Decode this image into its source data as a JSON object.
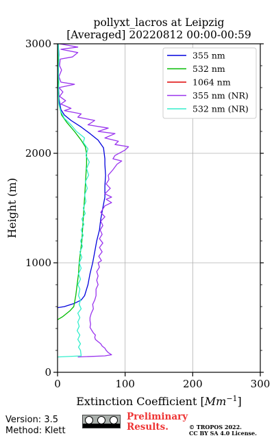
{
  "chart_data": {
    "type": "line",
    "title": [
      "pollyxt_lacros at Leipzig",
      "[Averaged] 20220812 00:00-00:59"
    ],
    "xlabel": "Extinction Coefficient [",
    "xlabel_unit": "Mm",
    "xlabel_exp": "−1",
    "xlabel_close": "]",
    "ylabel": "Height (m)",
    "xlim": [
      0,
      300
    ],
    "ylim": [
      0,
      3000
    ],
    "xticks": [
      0,
      100,
      200,
      300
    ],
    "yticks": [
      0,
      1000,
      2000,
      3000
    ],
    "grid": true,
    "legend_position": "top-right",
    "series": [
      {
        "name": "355 nm",
        "color": "#0000dd",
        "points": [
          [
            0,
            590
          ],
          [
            10,
            600
          ],
          [
            25,
            630
          ],
          [
            35,
            660
          ],
          [
            40,
            700
          ],
          [
            45,
            800
          ],
          [
            48,
            900
          ],
          [
            52,
            1000
          ],
          [
            55,
            1100
          ],
          [
            58,
            1200
          ],
          [
            62,
            1300
          ],
          [
            64,
            1400
          ],
          [
            67,
            1500
          ],
          [
            70,
            1600
          ],
          [
            70,
            1700
          ],
          [
            71,
            1800
          ],
          [
            70,
            1900
          ],
          [
            70,
            1950
          ],
          [
            68,
            2050
          ],
          [
            60,
            2120
          ],
          [
            48,
            2180
          ],
          [
            35,
            2240
          ],
          [
            20,
            2300
          ],
          [
            10,
            2350
          ],
          [
            5,
            2400
          ],
          [
            2,
            2500
          ],
          [
            1,
            2700
          ],
          [
            2,
            2900
          ],
          [
            1,
            3000
          ]
        ]
      },
      {
        "name": "532 nm",
        "color": "#00bb00",
        "points": [
          [
            0,
            480
          ],
          [
            8,
            510
          ],
          [
            18,
            560
          ],
          [
            24,
            600
          ],
          [
            27,
            700
          ],
          [
            29,
            800
          ],
          [
            31,
            900
          ],
          [
            32,
            1000
          ],
          [
            34,
            1100
          ],
          [
            36,
            1200
          ],
          [
            37,
            1300
          ],
          [
            38,
            1400
          ],
          [
            39,
            1500
          ],
          [
            40,
            1600
          ],
          [
            41,
            1700
          ],
          [
            42,
            1800
          ],
          [
            43,
            1900
          ],
          [
            43,
            2000
          ],
          [
            41,
            2060
          ],
          [
            35,
            2120
          ],
          [
            25,
            2200
          ],
          [
            14,
            2280
          ],
          [
            6,
            2350
          ],
          [
            2,
            2450
          ],
          [
            1,
            2600
          ],
          [
            1,
            3000
          ]
        ]
      },
      {
        "name": "1064 nm",
        "color": "#dd0000",
        "points": []
      },
      {
        "name": "355 nm (NR)",
        "color": "#9933ee",
        "points": [
          [
            30,
            140
          ],
          [
            50,
            145
          ],
          [
            70,
            150
          ],
          [
            80,
            160
          ],
          [
            75,
            180
          ],
          [
            72,
            200
          ],
          [
            70,
            220
          ],
          [
            66,
            240
          ],
          [
            64,
            260
          ],
          [
            60,
            280
          ],
          [
            56,
            300
          ],
          [
            55,
            320
          ],
          [
            56,
            340
          ],
          [
            53,
            360
          ],
          [
            50,
            390
          ],
          [
            48,
            410
          ],
          [
            49,
            440
          ],
          [
            48,
            470
          ],
          [
            48,
            500
          ],
          [
            50,
            540
          ],
          [
            53,
            580
          ],
          [
            52,
            620
          ],
          [
            55,
            660
          ],
          [
            57,
            700
          ],
          [
            57,
            760
          ],
          [
            60,
            800
          ],
          [
            58,
            840
          ],
          [
            60,
            880
          ],
          [
            58,
            920
          ],
          [
            62,
            960
          ],
          [
            60,
            1000
          ],
          [
            65,
            1020
          ],
          [
            61,
            1060
          ],
          [
            66,
            1100
          ],
          [
            62,
            1140
          ],
          [
            67,
            1180
          ],
          [
            62,
            1220
          ],
          [
            66,
            1260
          ],
          [
            63,
            1300
          ],
          [
            67,
            1340
          ],
          [
            64,
            1380
          ],
          [
            70,
            1420
          ],
          [
            64,
            1460
          ],
          [
            68,
            1500
          ],
          [
            70,
            1520
          ],
          [
            80,
            1550
          ],
          [
            72,
            1580
          ],
          [
            80,
            1600
          ],
          [
            70,
            1630
          ],
          [
            78,
            1680
          ],
          [
            72,
            1720
          ],
          [
            76,
            1760
          ],
          [
            75,
            1800
          ],
          [
            82,
            1850
          ],
          [
            88,
            1900
          ],
          [
            95,
            1930
          ],
          [
            82,
            1950
          ],
          [
            85,
            1980
          ],
          [
            100,
            2030
          ],
          [
            105,
            2060
          ],
          [
            85,
            2080
          ],
          [
            90,
            2110
          ],
          [
            70,
            2140
          ],
          [
            85,
            2180
          ],
          [
            60,
            2200
          ],
          [
            75,
            2230
          ],
          [
            45,
            2260
          ],
          [
            55,
            2300
          ],
          [
            30,
            2330
          ],
          [
            35,
            2360
          ],
          [
            10,
            2390
          ],
          [
            20,
            2410
          ],
          [
            5,
            2450
          ],
          [
            12,
            2480
          ],
          [
            3,
            2520
          ],
          [
            8,
            2560
          ],
          [
            2,
            2600
          ],
          [
            25,
            2630
          ],
          [
            5,
            2650
          ],
          [
            2,
            2700
          ],
          [
            6,
            2760
          ],
          [
            3,
            2800
          ],
          [
            4,
            2860
          ],
          [
            22,
            2880
          ],
          [
            30,
            2920
          ],
          [
            5,
            2950
          ],
          [
            30,
            2970
          ],
          [
            3,
            3000
          ]
        ]
      },
      {
        "name": "532 nm (NR)",
        "color": "#33eecc",
        "points": [
          [
            0,
            140
          ],
          [
            35,
            150
          ],
          [
            34,
            200
          ],
          [
            31,
            230
          ],
          [
            34,
            260
          ],
          [
            30,
            300
          ],
          [
            33,
            340
          ],
          [
            29,
            380
          ],
          [
            32,
            420
          ],
          [
            30,
            460
          ],
          [
            33,
            500
          ],
          [
            30,
            540
          ],
          [
            35,
            580
          ],
          [
            32,
            620
          ],
          [
            34,
            660
          ],
          [
            31,
            700
          ],
          [
            33,
            760
          ],
          [
            30,
            800
          ],
          [
            34,
            850
          ],
          [
            31,
            900
          ],
          [
            35,
            950
          ],
          [
            32,
            1000
          ],
          [
            36,
            1050
          ],
          [
            33,
            1100
          ],
          [
            37,
            1150
          ],
          [
            34,
            1200
          ],
          [
            38,
            1250
          ],
          [
            35,
            1300
          ],
          [
            39,
            1350
          ],
          [
            36,
            1400
          ],
          [
            41,
            1450
          ],
          [
            38,
            1500
          ],
          [
            42,
            1560
          ],
          [
            40,
            1620
          ],
          [
            44,
            1680
          ],
          [
            41,
            1740
          ],
          [
            46,
            1800
          ],
          [
            43,
            1860
          ],
          [
            47,
            1920
          ],
          [
            42,
            1980
          ],
          [
            45,
            2040
          ],
          [
            38,
            2100
          ],
          [
            40,
            2140
          ],
          [
            28,
            2200
          ],
          [
            20,
            2260
          ],
          [
            10,
            2320
          ],
          [
            5,
            2380
          ],
          [
            2,
            2450
          ],
          [
            1,
            2550
          ],
          [
            2,
            2650
          ],
          [
            1,
            2750
          ],
          [
            2,
            2850
          ],
          [
            1,
            3000
          ]
        ]
      }
    ]
  },
  "footer": {
    "version": "Version: 3.5",
    "method": "Method: Klett",
    "preliminary_line1": "Preliminary",
    "preliminary_line2": "Results.",
    "copyright_line1": "© TROPOS 2022.",
    "copyright_line2": "CC BY SA 4.0 License."
  }
}
